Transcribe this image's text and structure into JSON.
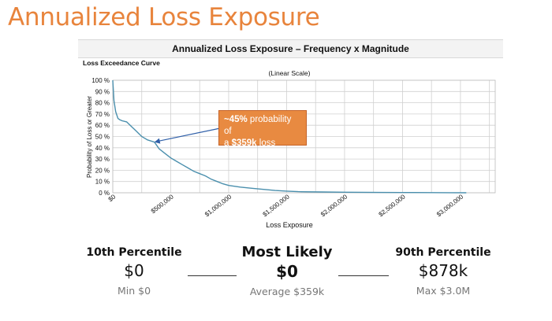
{
  "slide_title": "Annualized Loss Exposure",
  "chart_data": {
    "type": "line",
    "title": "Annualized Loss Exposure – Frequency x Magnitude",
    "subtitle": "Loss Exceedance Curve",
    "scale_note": "(Linear Scale)",
    "xlabel": "Loss Exposure",
    "ylabel": "Probability of Loss or Greater",
    "xlim": [
      0,
      3300000
    ],
    "ylim": [
      0,
      100
    ],
    "x_ticks": [
      0,
      500000,
      1000000,
      1500000,
      2000000,
      2500000,
      3000000
    ],
    "x_tick_labels": [
      "$0",
      "$500,000",
      "$1,000,000",
      "$1,500,000",
      "$2,000,000",
      "$2,500,000",
      "$3,000,000"
    ],
    "y_ticks": [
      0,
      10,
      20,
      30,
      40,
      50,
      60,
      70,
      80,
      90,
      100
    ],
    "y_tick_labels": [
      "0 %",
      "10 %",
      "20 %",
      "30 %",
      "40 %",
      "50 %",
      "60 %",
      "70 %",
      "80 %",
      "90 %",
      "100 %"
    ],
    "grid": true,
    "line_color": "#4a8fad",
    "series": [
      {
        "x": [
          0,
          10000,
          25000,
          45000,
          60000,
          80000,
          120000,
          160000,
          200000,
          250000,
          300000,
          359000,
          400000,
          450000,
          500000,
          550000,
          600000,
          650000,
          700000,
          750000,
          800000,
          850000,
          900000,
          950000,
          1000000,
          1100000,
          1200000,
          1300000,
          1400000,
          1500000,
          1600000,
          1800000,
          2000000,
          2300000,
          2600000,
          2900000,
          3050000
        ],
        "y": [
          100,
          82,
          72,
          66,
          65,
          64,
          63,
          59,
          55,
          50,
          47,
          45,
          39,
          35,
          31,
          28,
          25,
          22,
          19,
          17,
          15,
          12,
          10,
          8,
          6.5,
          5,
          4,
          3,
          2,
          1.5,
          1,
          0.7,
          0.5,
          0.3,
          0.2,
          0.1,
          0
        ]
      }
    ],
    "annotation": {
      "text_bold_1": "~45%",
      "text_1": " probability of",
      "text_2": "a ",
      "text_bold_2": "$359k",
      "text_3": " loss",
      "x": 359000,
      "y": 45,
      "color": "#e88a41"
    }
  },
  "stats": {
    "p10": {
      "label": "10th Percentile",
      "value": "$0",
      "sub": "Min $0"
    },
    "most_likely": {
      "label": "Most Likely",
      "value": "$0",
      "sub": "Average $359k"
    },
    "p90": {
      "label": "90th Percentile",
      "value": "$878k",
      "sub": "Max $3.0M"
    }
  }
}
